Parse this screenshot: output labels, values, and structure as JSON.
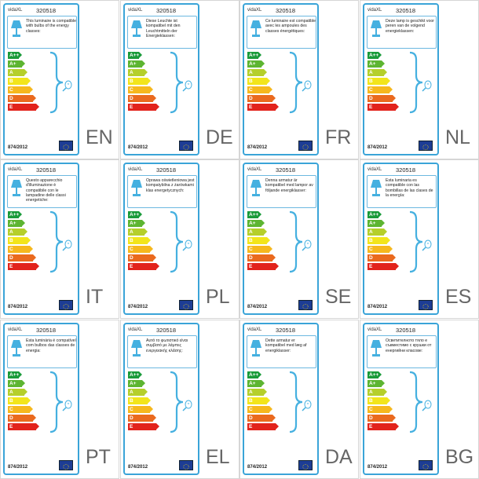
{
  "labels": [
    {
      "brand": "vidaXL",
      "model": "320518",
      "text": "This luminaire is compatible with bulbs of the energy classes:",
      "regulation": "874/2012",
      "lang": "EN"
    },
    {
      "brand": "vidaXL",
      "model": "320518",
      "text": "Diese Leuchte ist kompatibel mit den Leuchtmitteln der Energieklassen:",
      "regulation": "874/2012",
      "lang": "DE"
    },
    {
      "brand": "vidaXL",
      "model": "320518",
      "text": "Ce luminaire est compatible avec les ampoules des classes énergétiques:",
      "regulation": "874/2012",
      "lang": "FR"
    },
    {
      "brand": "vidaXL",
      "model": "320518",
      "text": "Deze lamp is geschikt voor peren van de volgend energieklassen:",
      "regulation": "874/2012",
      "lang": "NL"
    },
    {
      "brand": "vidaXL",
      "model": "320518",
      "text": "Questo apparecchio d'illuminazione è compatibile con le lampadine delle classi energetiche:",
      "regulation": "874/2012",
      "lang": "IT"
    },
    {
      "brand": "vidaXL",
      "model": "320518",
      "text": "Oprawa oświetleniowa jest kompatybilna z żarówkami klas energetycznych:",
      "regulation": "874/2012",
      "lang": "PL"
    },
    {
      "brand": "vidaXL",
      "model": "320518",
      "text": "Denna armatur är kompatibel med lampor av följande energiklasser:",
      "regulation": "874/2012",
      "lang": "SE"
    },
    {
      "brand": "vidaXL",
      "model": "320518",
      "text": "Esta luminaria es compatible con las bombillas de las clases de la energía:",
      "regulation": "874/2012",
      "lang": "ES"
    },
    {
      "brand": "vidaXL",
      "model": "320518",
      "text": "Esta luminária é compatível com bulbos das classes de energia:",
      "regulation": "874/2012",
      "lang": "PT"
    },
    {
      "brand": "vidaXL",
      "model": "320518",
      "text": "Αυτό το φωτιστικό είναι συμβατό με λάμπες ενεργειακής κλάσης:",
      "regulation": "874/2012",
      "lang": "EL"
    },
    {
      "brand": "vidaXL",
      "model": "320518",
      "text": "Dette armatur er kompatibel med læg af energiklasser:",
      "regulation": "874/2012",
      "lang": "DA"
    },
    {
      "brand": "vidaXL",
      "model": "320518",
      "text": "Осветителното тяло е съвместимо с крушки от енергийни класове:",
      "regulation": "874/2012",
      "lang": "BG"
    }
  ],
  "energy_classes": [
    {
      "name": "A++",
      "color": "#1a9b3a"
    },
    {
      "name": "A+",
      "color": "#5db531"
    },
    {
      "name": "A",
      "color": "#b5cf2b"
    },
    {
      "name": "B",
      "color": "#f2e51b"
    },
    {
      "name": "C",
      "color": "#f6b81d"
    },
    {
      "name": "D",
      "color": "#ea6a1e"
    },
    {
      "name": "E",
      "color": "#e2231c"
    }
  ],
  "colors": {
    "frame": "#3aa4d8",
    "lamp": "#45b0e0",
    "eu_flag": "#1d3d95"
  },
  "icons": {
    "lamp": "lamp-icon",
    "bulb": "bulb-icon",
    "brace": "brace-icon",
    "eu": "eu-flag-icon"
  }
}
